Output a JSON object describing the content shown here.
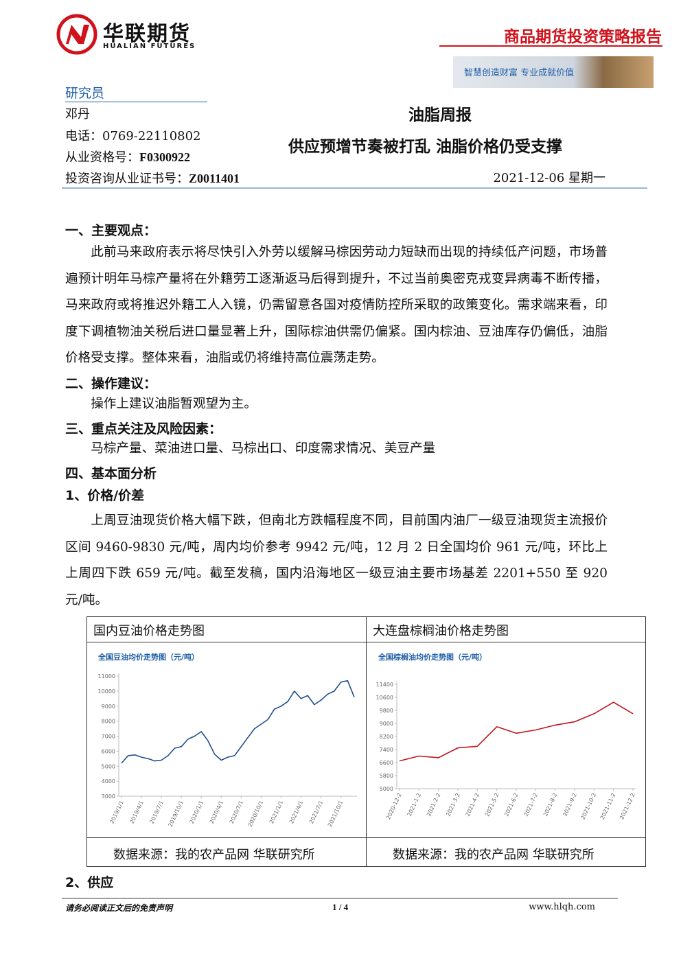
{
  "header": {
    "logo_cn": "华联期货",
    "logo_en": "HUALIAN FUTURES",
    "report_type": "商品期货投资策略报告",
    "slogan": "智慧创造财富 专业成就价值"
  },
  "researcher": {
    "heading": "研究员",
    "name": "邓丹",
    "phone_label": "电话：",
    "phone": "0769-22110802",
    "qualification_label": "从业资格号：",
    "qualification": "F0300922",
    "consult_label": "投资咨询从业证书号：",
    "consult": "Z0011401"
  },
  "report": {
    "title": "油脂周报",
    "subtitle": "供应预增节奏被打乱 油脂价格仍受支撑",
    "date": "2021-12-06 星期一"
  },
  "sections": [
    {
      "heading": "一、主要观点：",
      "text": "此前马来政府表示将尽快引入外劳以缓解马棕因劳动力短缺而出现的持续低产问题，市场普遍预计明年马棕产量将在外籍劳工逐渐返马后得到提升，不过当前奥密克戎变异病毒不断传播，马来政府或将推迟外籍工人入镜，仍需留意各国对疫情防控所采取的政策变化。需求端来看，印度下调植物油关税后进口量显著上升，国际棕油供需仍偏紧。国内棕油、豆油库存仍偏低，油脂价格受支撑。整体来看，油脂或仍将维持高位震荡走势。"
    },
    {
      "heading": "二、操作建议：",
      "text": "操作上建议油脂暂观望为主。"
    },
    {
      "heading": "三、重点关注及风险因素：",
      "text": "马棕产量、菜油进口量、马棕出口、印度需求情况、美豆产量"
    },
    {
      "heading": "四、基本面分析"
    },
    {
      "heading": "1、价格/价差",
      "text": "上周豆油现货价格大幅下跌，但南北方跌幅程度不同，目前国内油厂一级豆油现货主流报价区间 9460-9830 元/吨，周内均价参考 9942 元/吨，12 月 2 日全国均价 961 元/吨，环比上上周四下跌 659 元/吨。截至发稿，国内沿海地区一级豆油主要市场基差 2201+550 至 920 元/吨。"
    },
    {
      "heading": "2、供应"
    }
  ],
  "figures": [
    {
      "caption": "国内豆油价格走势图",
      "source": "数据来源：我的农产品网 华联研究所"
    },
    {
      "caption": "大连盘棕榈油价格走势图",
      "source": "数据来源：我的农产品网 华联研究所"
    }
  ],
  "chart_data": [
    {
      "type": "line",
      "title": "全国豆油均价走势图（元/吨）",
      "color": "#1f4e8c",
      "categories": [
        "2019/1/1",
        null,
        null,
        "2019/4/1",
        null,
        null,
        "2019/7/1",
        null,
        null,
        "2019/10/1",
        null,
        null,
        "2020/1/1",
        null,
        null,
        "2020/4/1",
        null,
        null,
        "2020/7/1",
        null,
        null,
        "2020/10/1",
        null,
        null,
        "2021/1/1",
        null,
        null,
        "2021/4/1",
        null,
        null,
        "2021/7/1",
        null,
        null,
        "2021/10/1",
        null,
        null
      ],
      "values": [
        5200,
        5700,
        5750,
        5600,
        5500,
        5350,
        5400,
        5700,
        6200,
        6300,
        6800,
        7000,
        7300,
        6700,
        5800,
        5400,
        5600,
        5700,
        6300,
        6900,
        7500,
        7800,
        8100,
        8800,
        9000,
        9300,
        10000,
        9500,
        9700,
        9100,
        9400,
        9800,
        10000,
        10600,
        10700,
        9600
      ],
      "ylim": [
        3000,
        11000
      ],
      "yticks": [
        3000,
        4000,
        5000,
        6000,
        7000,
        8000,
        9000,
        10000,
        11000
      ]
    },
    {
      "type": "line",
      "title": "全国棕榈油均价走势图（元/吨）",
      "color": "#c0161c",
      "categories": [
        "2020-12-2",
        "2021-1-2",
        "2021-2-2",
        "2021-3-2",
        "2021-4-2",
        "2021-5-2",
        "2021-6-2",
        "2021-7-2",
        "2021-8-2",
        "2021-9-2",
        "2021-10-2",
        "2021-11-2",
        "2021-12-2"
      ],
      "values": [
        6700,
        7000,
        6900,
        7500,
        7600,
        8800,
        8400,
        8600,
        8900,
        9100,
        9600,
        10300,
        9600
      ],
      "ylim": [
        5000,
        11400
      ],
      "yticks": [
        5000,
        5800,
        6600,
        7400,
        8200,
        9000,
        9800,
        10600,
        11400
      ]
    }
  ],
  "footer": {
    "disclaimer": "请务必阅读正文后的免责声明",
    "page": "1 / 4",
    "site": "www.hlqh.com"
  }
}
